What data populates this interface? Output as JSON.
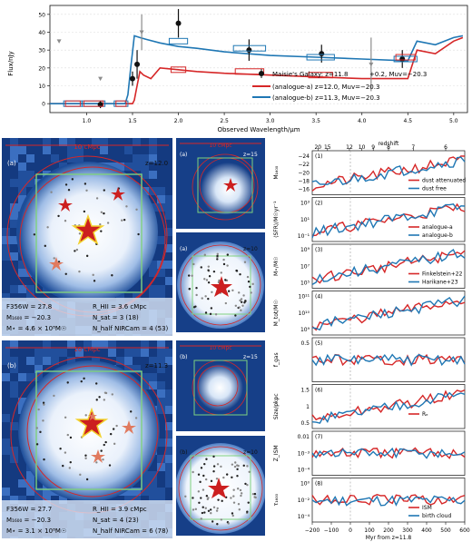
{
  "colors": {
    "red": "#d62728",
    "blue": "#1f77b4",
    "grey": "#8c8c8c",
    "map_dark": "#153d85",
    "map_light": "#e9f1fb",
    "green_box": "#7fd17f",
    "star_red": "#cc1f1f",
    "star_orange": "#e07a5f",
    "gold": "#f2d22e"
  },
  "sed": {
    "ylabel": "Flux/nJy",
    "xlabel": "Observed Wavelength/μm",
    "xticks": [
      "1.0",
      "1.5",
      "2.0",
      "2.5",
      "3.0",
      "3.5",
      "4.0",
      "4.5",
      "5.0"
    ],
    "yticks": [
      "0",
      "10",
      "20",
      "30",
      "40",
      "50"
    ],
    "legend": [
      {
        "label": "Maisie's Galaxy: z=11.8",
        "suffix_sup": "+0.2",
        "suffix_sub": "−0.3",
        "rest": ", Muv=−20.3",
        "rest_sup": "+0.1",
        "rest_sub": "−0.1",
        "color": "#111111",
        "kind": "point"
      },
      {
        "label": "(analogue-a) z=12.0, Muv=−20.3",
        "color": "#d62728",
        "kind": "line"
      },
      {
        "label": "(analogue-b) z=11.3, Muv=−20.3",
        "color": "#1f77b4",
        "kind": "line"
      }
    ]
  },
  "chart_data": {
    "type": "line",
    "xlabel": "Observed Wavelength/μm",
    "ylabel": "Flux/nJy",
    "xlim": [
      0.6,
      5.15
    ],
    "ylim": [
      -5,
      55
    ],
    "series": [
      {
        "name": "(analogue-a) z=12.0, Muv=−20.3",
        "color": "#d62728",
        "x": [
          0.6,
          1.5,
          1.52,
          1.55,
          1.58,
          1.62,
          1.7,
          1.8,
          2.0,
          2.2,
          2.5,
          3.0,
          3.5,
          4.0,
          4.5,
          4.6,
          4.8,
          5.0,
          5.1
        ],
        "y": [
          0,
          0,
          2,
          10,
          18,
          16,
          14,
          20,
          19,
          18,
          17,
          16,
          15,
          14,
          14,
          30,
          28,
          35,
          37
        ]
      },
      {
        "name": "(analogue-b) z=11.3, Muv=−20.3",
        "color": "#1f77b4",
        "x": [
          0.6,
          1.42,
          1.45,
          1.48,
          1.52,
          1.58,
          1.65,
          1.8,
          2.0,
          2.2,
          2.5,
          3.0,
          3.5,
          4.0,
          4.5,
          4.6,
          4.8,
          5.0,
          5.1
        ],
        "y": [
          0,
          0,
          5,
          20,
          38,
          37,
          36,
          34,
          32,
          31,
          29,
          27,
          26,
          25,
          24,
          35,
          33,
          37,
          38
        ]
      },
      {
        "name": "Maisie's Galaxy",
        "color": "#111111",
        "kind": "errorbar",
        "x": [
          1.15,
          1.5,
          1.55,
          2.0,
          2.77,
          3.56,
          4.44
        ],
        "y": [
          -0.5,
          14,
          22,
          45,
          30,
          28,
          25
        ],
        "yerr": [
          2,
          4,
          8,
          8,
          6,
          5,
          5
        ]
      },
      {
        "name": "upper limits",
        "color": "#8c8c8c",
        "kind": "errorbar",
        "x": [
          0.7,
          1.15,
          1.6,
          4.1
        ],
        "y": [
          35,
          14,
          40,
          22
        ],
        "yerr": [
          0,
          0,
          10,
          15
        ]
      }
    ]
  },
  "panels": {
    "a_label": "(a)",
    "a_z": "z=12.0",
    "a_scale": "10 cMpc",
    "a_f356w": "F356W = 27.8",
    "a_m1600": "M₁₆₀₀ = −20.3",
    "a_mstar": "M⋆ = 4.6 × 10⁸M☉",
    "a_rhii": "R_HII = 3.6 cMpc",
    "a_nsat": "N_sat = 3 (18)",
    "a_nhalf": "N_half NIRCam = 4 (53)",
    "b_label": "(b)",
    "b_z": "z=11.3",
    "b_scale": "10 cMpc",
    "b_f356w": "F356W = 27.7",
    "b_m1600": "M₁₆₀₀ = −20.3",
    "b_mstar": "M⋆ = 3.1 × 10⁸M☉",
    "b_rhii": "R_HII = 3.9 cMpc",
    "b_nsat": "N_sat = 4 (23)",
    "b_nhalf": "N_half NIRCam = 6 (78)",
    "mini": [
      {
        "label": "(a)",
        "z": "z=15",
        "scale": "10 cMpc"
      },
      {
        "label": "(a)",
        "z": "z=10",
        "scale": ""
      },
      {
        "label": "(b)",
        "z": "z=15",
        "scale": "10 cMpc"
      },
      {
        "label": "(b)",
        "z": "z=10",
        "scale": ""
      }
    ]
  },
  "history": {
    "top_label": "redshift",
    "top_ticks": [
      "20",
      "15",
      "12",
      "10",
      "9",
      "8",
      "7",
      "6"
    ],
    "xlabel": "Myr from z=11.8",
    "xticks": [
      "−200",
      "−100",
      "0",
      "100",
      "200",
      "300",
      "400",
      "500",
      "600"
    ],
    "rows": [
      {
        "num": "(1)",
        "ylabel": "M₁₆₀₀",
        "ticks": [
          "−24",
          "−22",
          "−20",
          "−18",
          "−16"
        ],
        "legend": [
          "dust attenuated",
          "dust free"
        ]
      },
      {
        "num": "(2)",
        "ylabel": "⟨SFR⟩/M☉yr⁻¹",
        "ticks": [
          "10³",
          "10¹",
          "10⁻¹"
        ],
        "legend": [
          "analogue-a",
          "analogue-b"
        ]
      },
      {
        "num": "(3)",
        "ylabel": "M⋆/M☉",
        "ticks": [
          "10⁹",
          "10⁷",
          "10⁵"
        ],
        "legend": [
          "Finkelstein+22",
          "Harikane+23"
        ]
      },
      {
        "num": "(4)",
        "ylabel": "M_tot/M☉",
        "ticks": [
          "10¹¹",
          "10¹⁰",
          "10⁹"
        ],
        "legend": []
      },
      {
        "num": "(5)",
        "ylabel": "f_gas",
        "ticks": [
          "0.5"
        ],
        "legend": []
      },
      {
        "num": "(6)",
        "ylabel": "Size/pkpc",
        "ticks": [
          "1.5",
          "1",
          "0.5"
        ],
        "legend": [
          "Rₑ"
        ]
      },
      {
        "num": "(7)",
        "ylabel": "Z_ISM",
        "ticks": [
          "0.01",
          "10⁻³",
          "10⁻⁴"
        ],
        "legend": []
      },
      {
        "num": "(8)",
        "ylabel": "τ₁₆₀₀",
        "ticks": [
          "10⁰",
          "10⁻²",
          "10⁻⁴"
        ],
        "legend": [
          "ISM",
          "birth cloud"
        ]
      }
    ]
  }
}
